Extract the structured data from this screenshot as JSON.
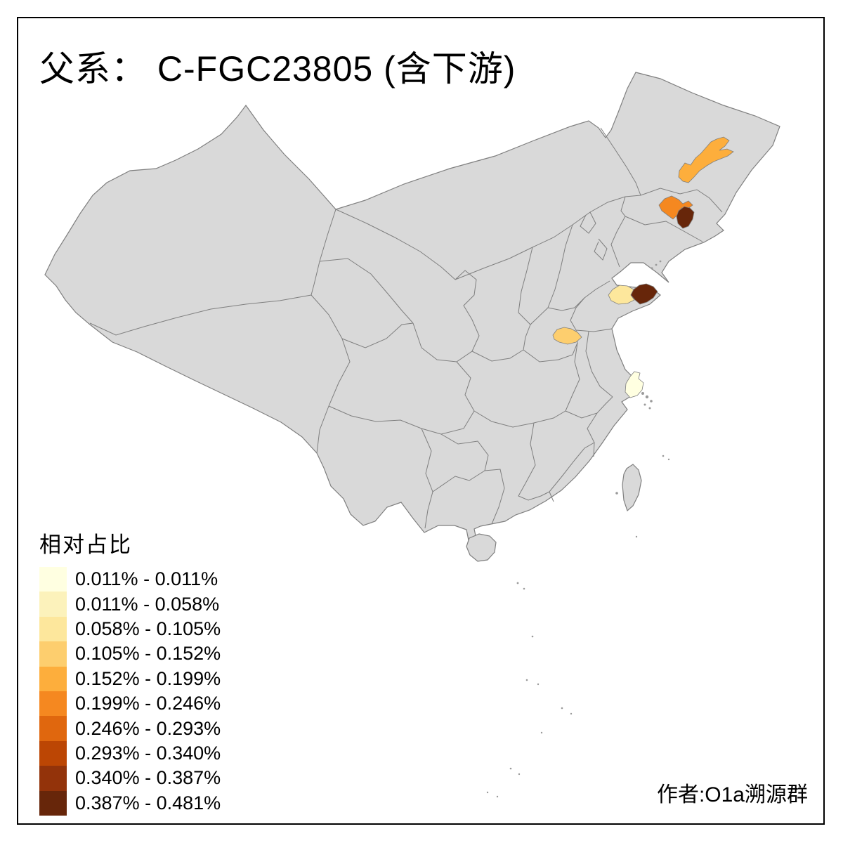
{
  "title": "父系： C-FGC23805 (含下游)",
  "attribution": "作者:O1a溯源群",
  "legend": {
    "title": "相对占比",
    "items": [
      {
        "label": "0.011% - 0.011%",
        "color": "#FFFFE1"
      },
      {
        "label": "0.011% - 0.058%",
        "color": "#FCF2BB"
      },
      {
        "label": "0.058% - 0.105%",
        "color": "#FDE79C"
      },
      {
        "label": "0.105% - 0.152%",
        "color": "#FDCE6E"
      },
      {
        "label": "0.152% - 0.199%",
        "color": "#FDAE3C"
      },
      {
        "label": "0.199% - 0.246%",
        "color": "#F58820"
      },
      {
        "label": "0.246% - 0.293%",
        "color": "#E0670E"
      },
      {
        "label": "0.293% - 0.340%",
        "color": "#BC4604"
      },
      {
        "label": "0.340% - 0.387%",
        "color": "#93330A"
      },
      {
        "label": "0.387% - 0.481%",
        "color": "#67260A"
      }
    ]
  },
  "map": {
    "land_color": "#D9D9D9",
    "border_color": "#7F7F7F",
    "background": "#FFFFFF",
    "highlighted_regions": [
      {
        "name": "heilongjiang-central",
        "class_index": 4,
        "value_range": "0.152% - 0.199%"
      },
      {
        "name": "jilin-central",
        "class_index": 5,
        "value_range": "0.199% - 0.246%"
      },
      {
        "name": "jilin-east",
        "class_index": 9,
        "value_range": "0.387% - 0.481%"
      },
      {
        "name": "shandong-yantai",
        "class_index": 2,
        "value_range": "0.058% - 0.105%"
      },
      {
        "name": "shandong-east-tip",
        "class_index": 9,
        "value_range": "0.387% - 0.481%"
      },
      {
        "name": "jiangsu-north",
        "class_index": 3,
        "value_range": "0.105% - 0.152%"
      },
      {
        "name": "shanghai-area",
        "class_index": 0,
        "value_range": "0.011% - 0.011%"
      }
    ]
  }
}
